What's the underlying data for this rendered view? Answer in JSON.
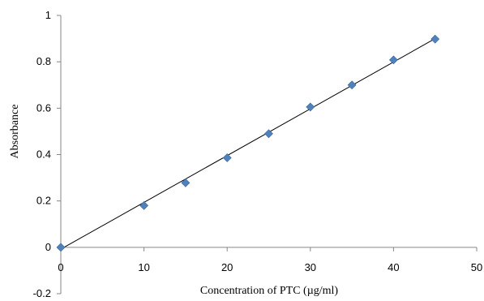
{
  "chart_data": {
    "type": "scatter",
    "title": "",
    "xlabel": "Concentration of PTC (µg/ml)",
    "ylabel": "Absorbance",
    "xlim": [
      0,
      50
    ],
    "ylim": [
      -0.2,
      1
    ],
    "xticks": [
      0,
      10,
      20,
      30,
      40,
      50
    ],
    "yticks": [
      -0.2,
      0,
      0.2,
      0.4,
      0.6,
      0.8,
      1
    ],
    "xtick_labels": [
      "0",
      "10",
      "20",
      "30",
      "40",
      "50"
    ],
    "ytick_labels": [
      "-0.2",
      "0",
      "0.2",
      "0.4",
      "0.6",
      "0.8",
      "1"
    ],
    "grid": false,
    "legend": "none",
    "series": [
      {
        "marker": "diamond",
        "color": "#4F81BD",
        "x": [
          0,
          10,
          15,
          20,
          25,
          30,
          35,
          40,
          45
        ],
        "y": [
          0,
          0.18,
          0.278,
          0.386,
          0.49,
          0.605,
          0.7,
          0.808,
          0.898
        ]
      }
    ],
    "trendline": {
      "type": "linear",
      "color": "#000000",
      "x": [
        0,
        45
      ],
      "y": [
        -0.008,
        0.9
      ]
    }
  }
}
